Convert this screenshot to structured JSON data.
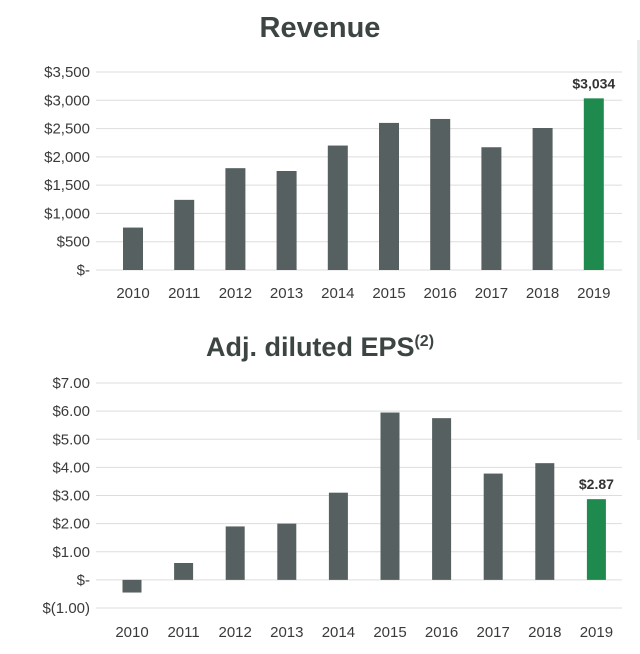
{
  "colors": {
    "bar": "#566060",
    "highlight": "#1f8a4e",
    "grid": "#dddddd",
    "title": "#3d4444"
  },
  "chart_data": [
    {
      "type": "bar",
      "title": "Revenue",
      "categories": [
        "2010",
        "2011",
        "2012",
        "2013",
        "2014",
        "2015",
        "2016",
        "2017",
        "2018",
        "2019"
      ],
      "values": [
        750,
        1240,
        1800,
        1750,
        2200,
        2600,
        2670,
        2170,
        2510,
        3034
      ],
      "highlight_index": 9,
      "highlight_label": "$3,034",
      "ylim": [
        0,
        3500
      ],
      "yticks": [
        0,
        500,
        1000,
        1500,
        2000,
        2500,
        3000,
        3500
      ],
      "ytick_labels": [
        "$-",
        "$500",
        "$1,000",
        "$1,500",
        "$2,000",
        "$2,500",
        "$3,000",
        "$3,500"
      ],
      "xlabel": "",
      "ylabel": "",
      "grid": true
    },
    {
      "type": "bar",
      "title": "Adj. diluted EPS",
      "title_superscript": "(2)",
      "categories": [
        "2010",
        "2011",
        "2012",
        "2013",
        "2014",
        "2015",
        "2016",
        "2017",
        "2018",
        "2019"
      ],
      "values": [
        -0.45,
        0.6,
        1.9,
        2.0,
        3.1,
        5.95,
        5.75,
        3.78,
        4.15,
        2.87
      ],
      "highlight_index": 9,
      "highlight_label": "$2.87",
      "ylim": [
        -1,
        7
      ],
      "yticks": [
        -1,
        0,
        1,
        2,
        3,
        4,
        5,
        6,
        7
      ],
      "ytick_labels": [
        "$(1.00)",
        "$-",
        "$1.00",
        "$2.00",
        "$3.00",
        "$4.00",
        "$5.00",
        "$6.00",
        "$7.00"
      ],
      "xlabel": "",
      "ylabel": "",
      "grid": true
    }
  ]
}
